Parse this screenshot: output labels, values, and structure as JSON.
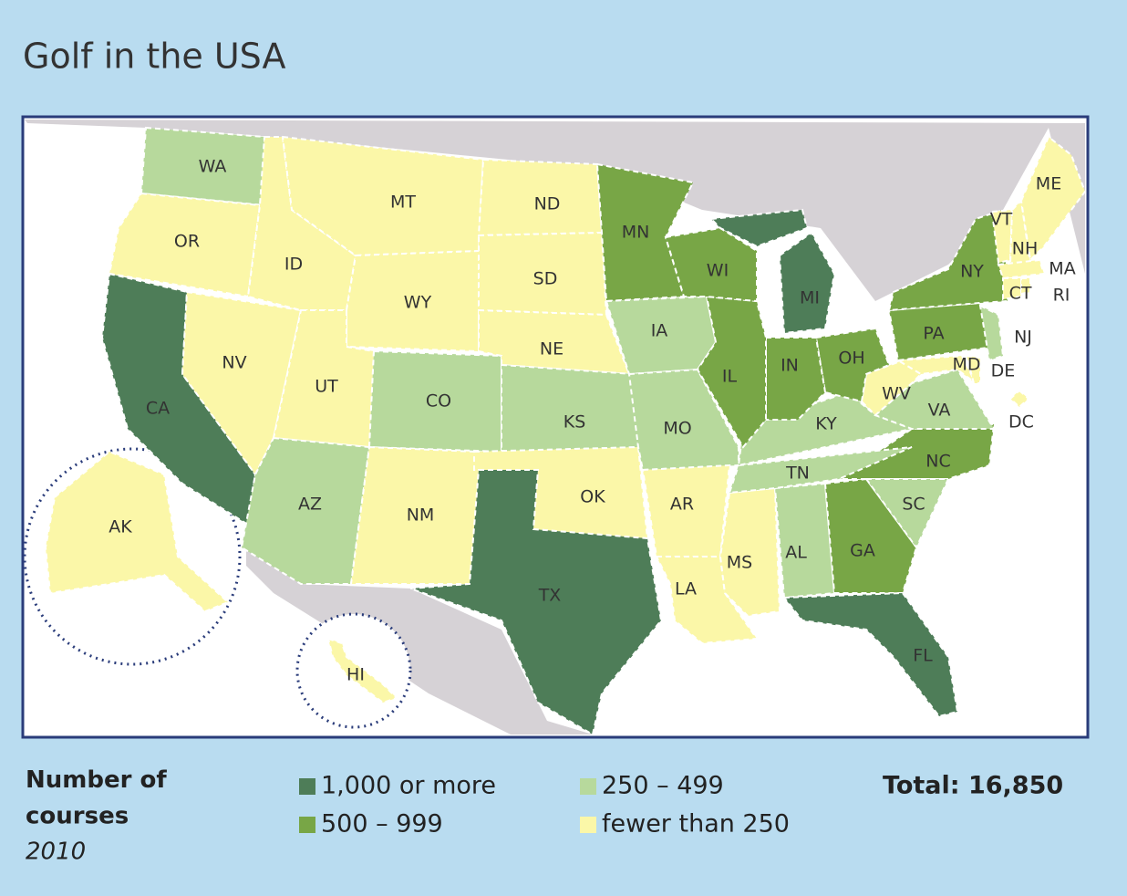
{
  "title": "Golf in the USA",
  "legend": {
    "title": "Number of courses",
    "subtitle": "2010",
    "classes": [
      {
        "label": "1,000 or more",
        "color": "#4e7d58"
      },
      {
        "label": "500 – 999",
        "color": "#78a646"
      },
      {
        "label": "250 – 499",
        "color": "#b7d99c"
      },
      {
        "label": "fewer than 250",
        "color": "#fbf7a8"
      }
    ]
  },
  "total": "Total: 16,850",
  "states": [
    {
      "label": "WA",
      "color": "#b7d99c"
    },
    {
      "label": "OR",
      "color": "#fbf7a8"
    },
    {
      "label": "CA",
      "color": "#4e7d58"
    },
    {
      "label": "NV",
      "color": "#fbf7a8"
    },
    {
      "label": "ID",
      "color": "#fbf7a8"
    },
    {
      "label": "MT",
      "color": "#fbf7a8"
    },
    {
      "label": "WY",
      "color": "#fbf7a8"
    },
    {
      "label": "UT",
      "color": "#fbf7a8"
    },
    {
      "label": "CO",
      "color": "#b7d99c"
    },
    {
      "label": "AZ",
      "color": "#b7d99c"
    },
    {
      "label": "NM",
      "color": "#fbf7a8"
    },
    {
      "label": "ND",
      "color": "#fbf7a8"
    },
    {
      "label": "SD",
      "color": "#fbf7a8"
    },
    {
      "label": "NE",
      "color": "#fbf7a8"
    },
    {
      "label": "KS",
      "color": "#b7d99c"
    },
    {
      "label": "OK",
      "color": "#fbf7a8"
    },
    {
      "label": "TX",
      "color": "#4e7d58"
    },
    {
      "label": "MN",
      "color": "#78a646"
    },
    {
      "label": "IA",
      "color": "#b7d99c"
    },
    {
      "label": "MO",
      "color": "#b7d99c"
    },
    {
      "label": "AR",
      "color": "#fbf7a8"
    },
    {
      "label": "LA",
      "color": "#fbf7a8"
    },
    {
      "label": "MS",
      "color": "#fbf7a8"
    },
    {
      "label": "AL",
      "color": "#b7d99c"
    },
    {
      "label": "GA",
      "color": "#78a646"
    },
    {
      "label": "FL",
      "color": "#4e7d58"
    },
    {
      "label": "NC",
      "color": "#78a646"
    },
    {
      "label": "SC",
      "color": "#b7d99c"
    },
    {
      "label": "TN",
      "color": "#b7d99c"
    },
    {
      "label": "KY",
      "color": "#b7d99c"
    },
    {
      "label": "VA",
      "color": "#b7d99c"
    },
    {
      "label": "WV",
      "color": "#fbf7a8"
    },
    {
      "label": "OH",
      "color": "#78a646"
    },
    {
      "label": "IN",
      "color": "#78a646"
    },
    {
      "label": "IL",
      "color": "#78a646"
    },
    {
      "label": "WI",
      "color": "#78a646"
    },
    {
      "label": "MI",
      "color": "#4e7d58"
    },
    {
      "label": "PA",
      "color": "#78a646"
    },
    {
      "label": "NY",
      "color": "#78a646"
    },
    {
      "label": "NJ",
      "color": "#b7d99c"
    },
    {
      "label": "MD",
      "color": "#fbf7a8"
    },
    {
      "label": "DE",
      "color": "#fbf7a8"
    },
    {
      "label": "DC",
      "color": "#fbf7a8"
    },
    {
      "label": "VT",
      "color": "#fbf7a8"
    },
    {
      "label": "NH",
      "color": "#fbf7a8"
    },
    {
      "label": "ME",
      "color": "#fbf7a8"
    },
    {
      "label": "MA",
      "color": "#fbf7a8"
    },
    {
      "label": "CT",
      "color": "#fbf7a8"
    },
    {
      "label": "RI",
      "color": "#fbf7a8"
    },
    {
      "label": "AK",
      "color": "#fbf7a8"
    },
    {
      "label": "HI",
      "color": "#fbf7a8"
    }
  ]
}
